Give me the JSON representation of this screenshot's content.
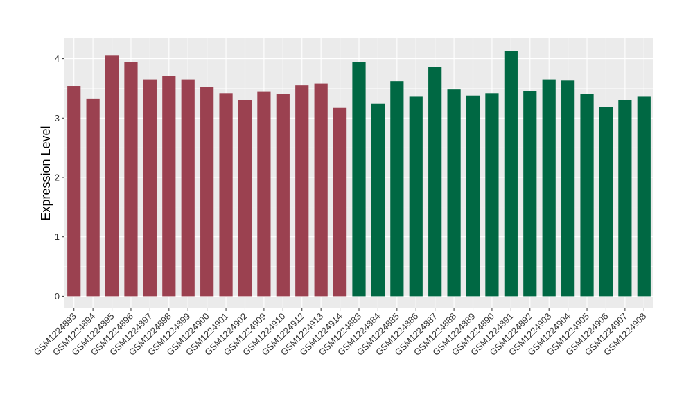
{
  "chart_data": {
    "type": "bar",
    "title": "",
    "xlabel": "",
    "ylabel": "Expression Level",
    "ylim": [
      0,
      4.3
    ],
    "yticks": [
      0,
      1,
      2,
      3,
      4
    ],
    "grid": true,
    "background": "#EBEBEB",
    "categories": [
      "GSM1224893",
      "GSM1224894",
      "GSM1224895",
      "GSM1224896",
      "GSM1224897",
      "GSM1224898",
      "GSM1224899",
      "GSM1224900",
      "GSM1224901",
      "GSM1224902",
      "GSM1224909",
      "GSM1224910",
      "GSM1224912",
      "GSM1224913",
      "GSM1224914",
      "GSM1224883",
      "GSM1224884",
      "GSM1224885",
      "GSM1224886",
      "GSM1224887",
      "GSM1224888",
      "GSM1224889",
      "GSM1224890",
      "GSM1224891",
      "GSM1224892",
      "GSM1224903",
      "GSM1224904",
      "GSM1224905",
      "GSM1224906",
      "GSM1224907",
      "GSM1224908"
    ],
    "values": [
      3.54,
      3.32,
      4.05,
      3.94,
      3.65,
      3.71,
      3.65,
      3.52,
      3.42,
      3.3,
      3.44,
      3.41,
      3.55,
      3.58,
      3.17,
      3.94,
      3.24,
      3.62,
      3.36,
      3.86,
      3.48,
      3.38,
      3.42,
      4.13,
      3.45,
      3.65,
      3.63,
      3.41,
      3.18,
      3.3,
      3.36
    ],
    "groups": [
      0,
      0,
      0,
      0,
      0,
      0,
      0,
      0,
      0,
      0,
      0,
      0,
      0,
      0,
      0,
      1,
      1,
      1,
      1,
      1,
      1,
      1,
      1,
      1,
      1,
      1,
      1,
      1,
      1,
      1,
      1
    ],
    "group_colors": [
      "#9B4150",
      "#006843"
    ]
  }
}
